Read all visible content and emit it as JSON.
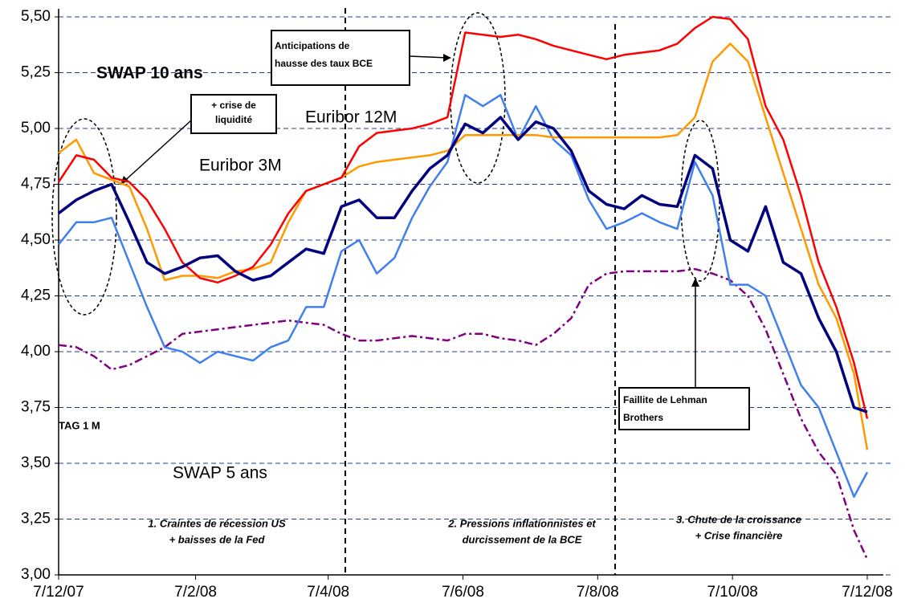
{
  "chart_data": {
    "type": "line",
    "grid": true,
    "xlim": [
      0,
      366
    ],
    "ylim": [
      3.0,
      5.5
    ],
    "xticks": [
      {
        "value": 0,
        "label": "7/12/07"
      },
      {
        "value": 62,
        "label": "7/2/08"
      },
      {
        "value": 122,
        "label": "7/4/08"
      },
      {
        "value": 183,
        "label": "7/6/08"
      },
      {
        "value": 244,
        "label": "7/8/08"
      },
      {
        "value": 305,
        "label": "7/10/08"
      },
      {
        "value": 366,
        "label": "7/12/08"
      }
    ],
    "yticks": [
      {
        "value": 3.0,
        "label": "3,00"
      },
      {
        "value": 3.25,
        "label": "3,25"
      },
      {
        "value": 3.5,
        "label": "3,50"
      },
      {
        "value": 3.75,
        "label": "3,75"
      },
      {
        "value": 4.0,
        "label": "4,00"
      },
      {
        "value": 4.25,
        "label": "4,25"
      },
      {
        "value": 4.5,
        "label": "4,50"
      },
      {
        "value": 4.75,
        "label": "4,75"
      },
      {
        "value": 5.0,
        "label": "5,00"
      },
      {
        "value": 5.25,
        "label": "5,25"
      },
      {
        "value": 5.5,
        "label": "5,50"
      }
    ],
    "x": [
      0,
      8,
      16,
      24,
      32,
      40,
      48,
      56,
      64,
      72,
      80,
      88,
      96,
      104,
      112,
      120,
      128,
      136,
      144,
      152,
      160,
      168,
      176,
      184,
      192,
      200,
      208,
      216,
      224,
      232,
      240,
      248,
      256,
      264,
      272,
      280,
      288,
      296,
      304,
      312,
      320,
      328,
      336,
      344,
      352,
      360,
      366
    ],
    "series": [
      {
        "name": "Euribor 12M",
        "color": "#ff0000",
        "values": [
          4.76,
          4.88,
          4.86,
          4.78,
          4.76,
          4.68,
          4.55,
          4.4,
          4.33,
          4.31,
          4.34,
          4.38,
          4.48,
          4.62,
          4.72,
          4.75,
          4.78,
          4.92,
          4.98,
          4.99,
          5.0,
          5.02,
          5.05,
          5.43,
          5.42,
          5.41,
          5.42,
          5.4,
          5.37,
          5.35,
          5.33,
          5.31,
          5.33,
          5.34,
          5.35,
          5.38,
          5.45,
          5.5,
          5.49,
          5.4,
          5.1,
          4.95,
          4.7,
          4.4,
          4.2,
          3.95,
          3.7
        ]
      },
      {
        "name": "Euribor 3M",
        "color": "#ff9900",
        "values": [
          4.89,
          4.95,
          4.8,
          4.77,
          4.74,
          4.55,
          4.32,
          4.34,
          4.34,
          4.33,
          4.36,
          4.37,
          4.4,
          4.58,
          4.72,
          4.75,
          4.78,
          4.83,
          4.85,
          4.86,
          4.87,
          4.88,
          4.9,
          4.97,
          4.97,
          4.97,
          4.97,
          4.97,
          4.96,
          4.96,
          4.96,
          4.96,
          4.96,
          4.96,
          4.96,
          4.97,
          5.05,
          5.3,
          5.38,
          5.3,
          5.05,
          4.8,
          4.55,
          4.3,
          4.15,
          3.9,
          3.56
        ]
      },
      {
        "name": "SWAP 10 ans",
        "color": "#000080",
        "values": [
          4.62,
          4.68,
          4.72,
          4.75,
          4.58,
          4.4,
          4.35,
          4.38,
          4.42,
          4.43,
          4.36,
          4.32,
          4.34,
          4.4,
          4.46,
          4.44,
          4.65,
          4.68,
          4.6,
          4.6,
          4.72,
          4.82,
          4.88,
          5.02,
          4.98,
          5.05,
          4.95,
          5.03,
          5.0,
          4.9,
          4.72,
          4.66,
          4.64,
          4.7,
          4.66,
          4.65,
          4.88,
          4.82,
          4.5,
          4.45,
          4.65,
          4.4,
          4.35,
          4.15,
          4.0,
          3.75,
          3.73
        ]
      },
      {
        "name": "SWAP 5 ans",
        "color": "#3f7fef",
        "values": [
          4.48,
          4.58,
          4.58,
          4.6,
          4.4,
          4.2,
          4.02,
          4.0,
          3.95,
          4.0,
          3.98,
          3.96,
          4.02,
          4.05,
          4.2,
          4.2,
          4.45,
          4.5,
          4.35,
          4.42,
          4.6,
          4.74,
          4.85,
          5.15,
          5.1,
          5.15,
          4.95,
          5.1,
          4.95,
          4.88,
          4.68,
          4.55,
          4.58,
          4.62,
          4.58,
          4.55,
          4.85,
          4.7,
          4.3,
          4.3,
          4.25,
          4.05,
          3.85,
          3.75,
          3.55,
          3.35,
          3.46
        ]
      },
      {
        "name": "TAG 1 M",
        "color": "#800080",
        "dash": "dashdot",
        "values": [
          4.03,
          4.02,
          3.98,
          3.92,
          3.94,
          3.98,
          4.02,
          4.08,
          4.09,
          4.1,
          4.11,
          4.12,
          4.13,
          4.14,
          4.13,
          4.12,
          4.08,
          4.05,
          4.05,
          4.06,
          4.07,
          4.06,
          4.05,
          4.08,
          4.08,
          4.06,
          4.05,
          4.03,
          4.08,
          4.15,
          4.3,
          4.35,
          4.36,
          4.36,
          4.36,
          4.36,
          4.37,
          4.35,
          4.32,
          4.25,
          4.1,
          3.9,
          3.7,
          3.55,
          3.45,
          3.2,
          3.07
        ]
      }
    ],
    "annotations": [
      {
        "lines": [
          "+ crise de",
          "liquidité"
        ]
      },
      {
        "lines": [
          "Anticipations de",
          "hausse des taux BCE"
        ]
      },
      {
        "lines": [
          "Faillite de Lehman",
          "Brothers"
        ]
      },
      {
        "lines": [
          "1. Craintes de récession US",
          "+ baisses de la Fed"
        ]
      },
      {
        "lines": [
          "2. Pressions  inflationnistes et",
          "durcissement de la BCE"
        ]
      },
      {
        "lines": [
          "3. Chute de la croissance",
          "+ Crise financière"
        ]
      }
    ]
  }
}
